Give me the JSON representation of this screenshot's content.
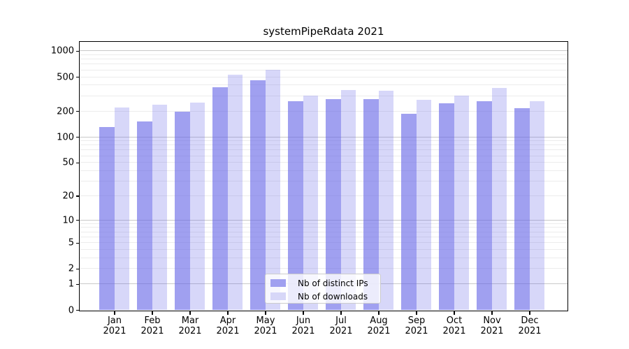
{
  "title": "systemPipeRdata 2021",
  "legend": {
    "items": [
      {
        "label": "Nb of distinct IPs",
        "swatch_color": "#a0a0f0"
      },
      {
        "label": "Nb of downloads",
        "swatch_color": "#d7d7f8"
      }
    ]
  },
  "chart_data": {
    "type": "bar",
    "title": "systemPipeRdata 2021",
    "scale": "pseudo-log (log10(1+y))",
    "categories": [
      "Jan 2021",
      "Feb 2021",
      "Mar 2021",
      "Apr 2021",
      "May 2021",
      "Jun 2021",
      "Jul 2021",
      "Aug 2021",
      "Sep 2021",
      "Oct 2021",
      "Nov 2021",
      "Dec 2021"
    ],
    "series": [
      {
        "name": "Nb of distinct IPs",
        "display_color": "#a0a0f0",
        "base_color": "#6666e6",
        "alpha": 0.62,
        "values": [
          130,
          150,
          198,
          375,
          458,
          262,
          276,
          276,
          187,
          246,
          262,
          216
        ]
      },
      {
        "name": "Nb of downloads",
        "display_color": "#d7d7f8",
        "base_color": "#6666e6",
        "alpha": 0.26,
        "values": [
          222,
          235,
          250,
          530,
          605,
          305,
          348,
          342,
          271,
          303,
          370,
          258
        ]
      }
    ],
    "y_ticks": [
      0,
      1,
      2,
      5,
      10,
      20,
      50,
      100,
      200,
      500,
      1000
    ],
    "ylim": [
      0,
      1288
    ],
    "xlabel": "",
    "ylabel": "",
    "grid": true,
    "grid_minor_color": "#ececec",
    "grid_major_color": "#c9c9c9",
    "legend_position": "lower center"
  }
}
